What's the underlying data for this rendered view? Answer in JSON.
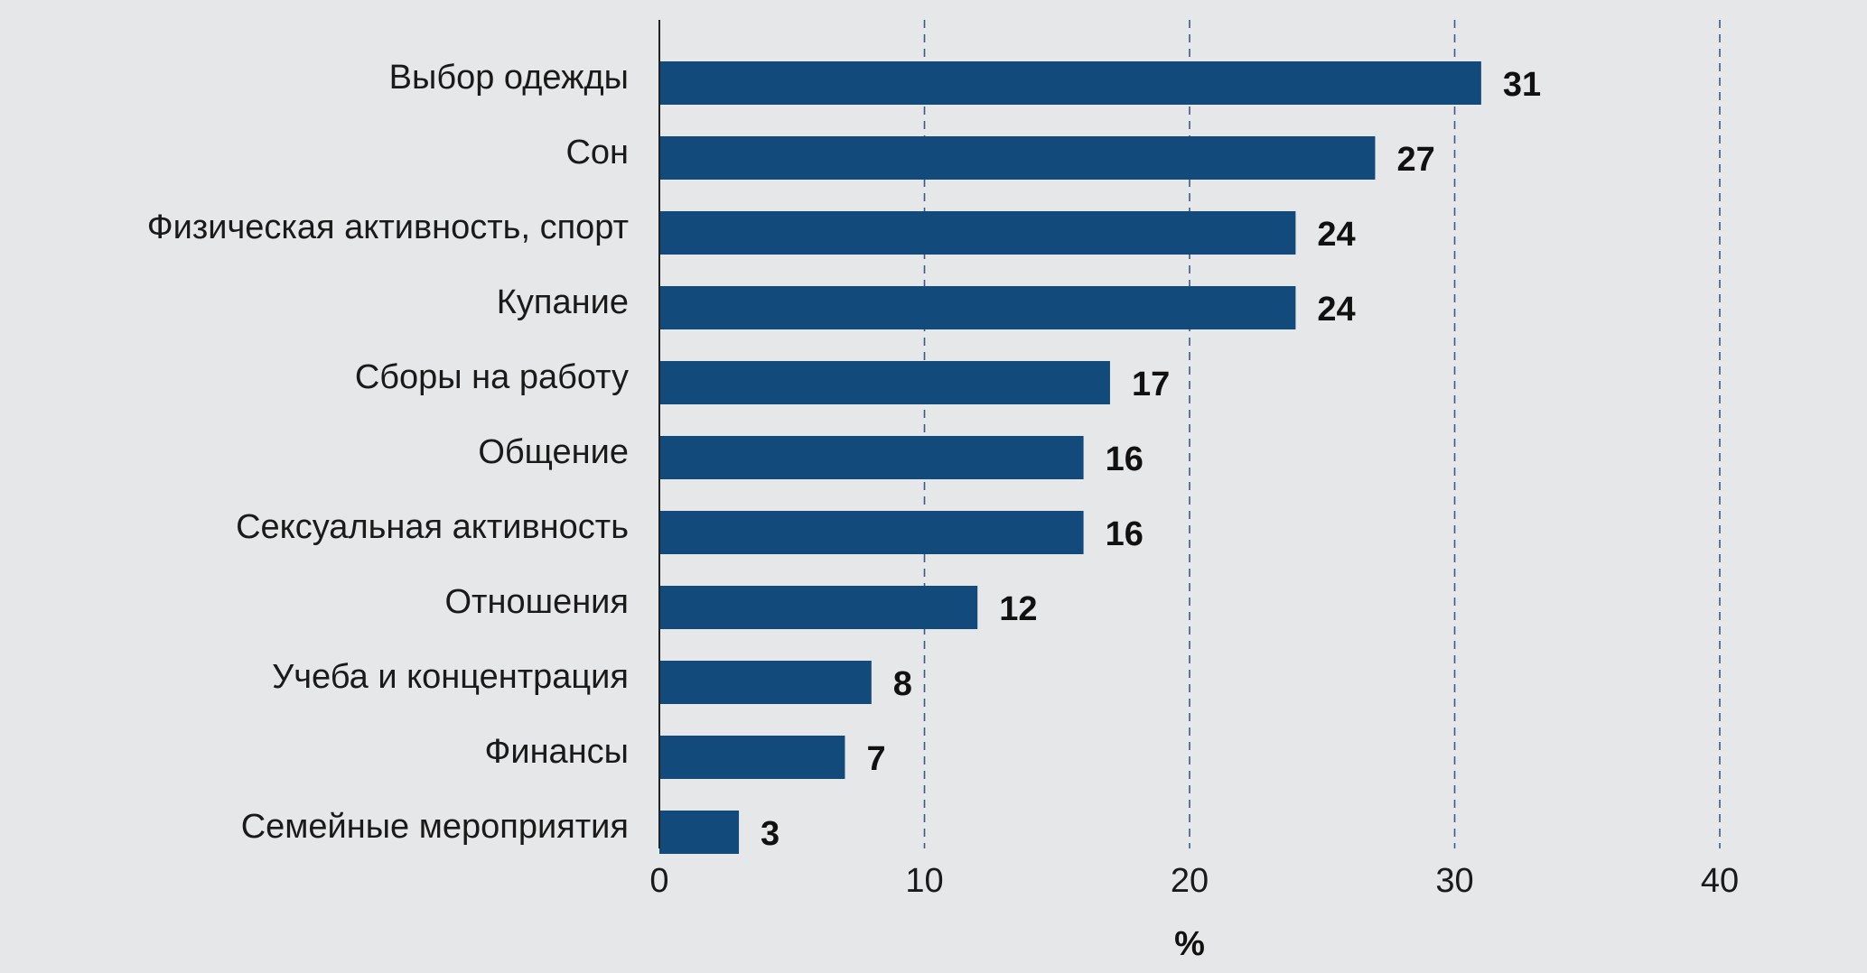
{
  "chart_data": {
    "type": "bar",
    "orientation": "horizontal",
    "categories": [
      "Выбор одежды",
      "Сон",
      "Физическая активность, спорт",
      "Купание",
      "Сборы на работу",
      "Общение",
      "Сексуальная активность",
      "Отношения",
      "Учеба и концентрация",
      "Финансы",
      "Семейные мероприятия"
    ],
    "values": [
      31,
      27,
      24,
      24,
      17,
      16,
      16,
      12,
      8,
      7,
      3
    ],
    "value_labels": [
      "31",
      "27",
      "24",
      "24",
      "17",
      "16",
      "16",
      "12",
      "8",
      "7",
      "3"
    ],
    "xlabel": "%",
    "ylabel": "",
    "xlim": [
      0,
      40
    ],
    "xticks": [
      0,
      10,
      20,
      30,
      40
    ],
    "xtick_labels": [
      "0",
      "10",
      "20",
      "30",
      "40"
    ],
    "grid": "vertical dashed",
    "bar_color": "#134a7c",
    "grid_color": "#3a5b8c",
    "background_color": "#e6e7e9"
  }
}
